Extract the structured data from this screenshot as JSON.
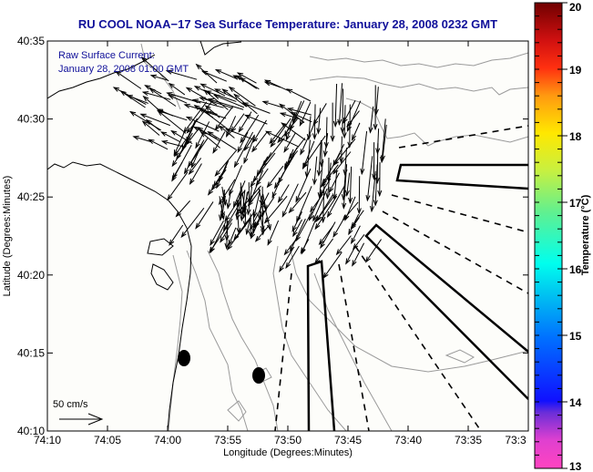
{
  "title": "RU COOL  NOAA−17  Sea Surface Temperature:  January 28, 2008 0232 GMT",
  "inset": {
    "line1": "Raw Surface Current:",
    "line2": "January 28, 2008 01:00 GMT"
  },
  "scale_label": "50 cm/s",
  "colors": {
    "title": "#10109a",
    "contour": "#9a9a9a",
    "coast": "#000000",
    "arrows": "#000000"
  },
  "chart_data": {
    "type": "map",
    "title": "RU COOL  NOAA−17  Sea Surface Temperature:  January 28, 2008 0232 GMT",
    "xlabel": "Longitude (Degrees:Minutes)",
    "ylabel": "Latitude (Degrees:Minutes)",
    "x_ticks": [
      "74:10",
      "74:05",
      "74:00",
      "73:55",
      "73:50",
      "73:45",
      "73:40",
      "73:35",
      "73:3"
    ],
    "y_ticks": [
      "40:35",
      "40:30",
      "40:25",
      "40:20",
      "40:15",
      "40:10"
    ],
    "xlim_minutes_west": [
      70,
      30
    ],
    "ylim_minutes_north": [
      10,
      35
    ],
    "colorbar": {
      "label": "Temperature (°C)",
      "range": [
        13,
        20
      ],
      "ticks": [
        "20",
        "19",
        "18",
        "17",
        "16",
        "15",
        "14",
        "13"
      ]
    },
    "markers": [
      {
        "name": "buoy-marker-1",
        "lon_min": 58.8,
        "lat_min": 14.6
      },
      {
        "name": "buoy-marker-2",
        "lon_min": 52.2,
        "lat_min": 13.4
      }
    ]
  }
}
